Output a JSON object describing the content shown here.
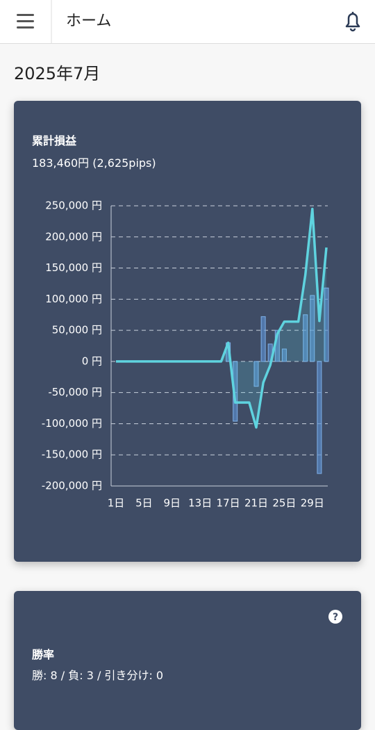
{
  "header": {
    "title": "ホーム"
  },
  "month": "2025年7月",
  "pnl_card": {
    "title": "累計損益",
    "summary": "183,460円 (2,625pips)"
  },
  "chart_data": {
    "type": "bar+line",
    "categories": [
      "1日",
      null,
      null,
      null,
      "5日",
      null,
      null,
      null,
      "9日",
      null,
      null,
      null,
      "13日",
      null,
      null,
      null,
      "17日",
      null,
      null,
      null,
      "21日",
      null,
      null,
      null,
      "25日",
      null,
      null,
      null,
      "29日",
      null,
      null
    ],
    "series": [
      {
        "type": "bar",
        "color": "#5b8fd0",
        "values": [
          0,
          0,
          0,
          0,
          0,
          0,
          0,
          0,
          0,
          0,
          0,
          0,
          0,
          0,
          0,
          0,
          30000,
          -96000,
          0,
          0,
          -40000,
          72000,
          28000,
          50000,
          20000,
          0,
          0,
          75000,
          106000,
          -180000,
          118000
        ]
      },
      {
        "type": "line",
        "color": "#5fd3df",
        "values": [
          0,
          0,
          0,
          0,
          0,
          0,
          0,
          0,
          0,
          0,
          0,
          0,
          0,
          0,
          0,
          0,
          30000,
          -66000,
          -66000,
          -66000,
          -106000,
          -34000,
          -6000,
          44000,
          64000,
          64000,
          64000,
          139000,
          245000,
          65000,
          183000
        ]
      }
    ],
    "ylim": [
      -200000,
      250000
    ],
    "yticks": [
      {
        "value": -200000,
        "label": "-200,000 円"
      },
      {
        "value": -150000,
        "label": "-150,000 円"
      },
      {
        "value": -100000,
        "label": "-100,000 円"
      },
      {
        "value": -50000,
        "label": "-50,000 円"
      },
      {
        "value": 0,
        "label": "0 円"
      },
      {
        "value": 50000,
        "label": "50,000 円"
      },
      {
        "value": 100000,
        "label": "100,000 円"
      },
      {
        "value": 150000,
        "label": "150,000 円"
      },
      {
        "value": 200000,
        "label": "200,000 円"
      },
      {
        "value": 250000,
        "label": "250,000 円"
      }
    ],
    "grid": true
  },
  "win_card": {
    "title": "勝率",
    "summary": "勝: 8 / 負: 3 / 引き分け: 0"
  }
}
